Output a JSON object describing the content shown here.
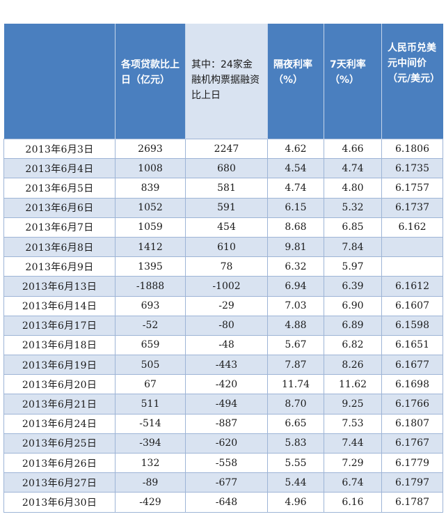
{
  "headers": [
    "",
    "各项贷款比上日（亿元）",
    "其中：24家金融机构票据融资比上日",
    "隔夜利率（%）",
    "7天利率（%）",
    "人民币兑美元中间价（元/美元）"
  ],
  "rows": [
    {
      "date": "2013年6月3日",
      "loans": "2693",
      "bills": "2247",
      "overnight": "4.62",
      "seven_day": "4.66",
      "usd": "6.1806"
    },
    {
      "date": "2013年6月4日",
      "loans": "1008",
      "bills": "680",
      "overnight": "4.54",
      "seven_day": "4.74",
      "usd": "6.1735"
    },
    {
      "date": "2013年6月5日",
      "loans": "839",
      "bills": "581",
      "overnight": "4.74",
      "seven_day": "4.80",
      "usd": "6.1757"
    },
    {
      "date": "2013年6月6日",
      "loans": "1052",
      "bills": "591",
      "overnight": "6.15",
      "seven_day": "5.32",
      "usd": "6.1737"
    },
    {
      "date": "2013年6月7日",
      "loans": "1059",
      "bills": "454",
      "overnight": "8.68",
      "seven_day": "6.85",
      "usd": "6.162"
    },
    {
      "date": "2013年6月8日",
      "loans": "1412",
      "bills": "610",
      "overnight": "9.81",
      "seven_day": "7.84",
      "usd": ""
    },
    {
      "date": "2013年6月9日",
      "loans": "1395",
      "bills": "78",
      "overnight": "6.32",
      "seven_day": "5.97",
      "usd": ""
    },
    {
      "date": "2013年6月13日",
      "loans": "-1888",
      "bills": "-1002",
      "overnight": "6.94",
      "seven_day": "6.39",
      "usd": "6.1612"
    },
    {
      "date": "2013年6月14日",
      "loans": "693",
      "bills": "-29",
      "overnight": "7.03",
      "seven_day": "6.90",
      "usd": "6.1607"
    },
    {
      "date": "2013年6月17日",
      "loans": "-52",
      "bills": "-80",
      "overnight": "4.88",
      "seven_day": "6.89",
      "usd": "6.1598"
    },
    {
      "date": "2013年6月18日",
      "loans": "659",
      "bills": "-48",
      "overnight": "5.67",
      "seven_day": "6.82",
      "usd": "6.1651"
    },
    {
      "date": "2013年6月19日",
      "loans": "505",
      "bills": "-443",
      "overnight": "7.87",
      "seven_day": "8.26",
      "usd": "6.1677"
    },
    {
      "date": "2013年6月20日",
      "loans": "67",
      "bills": "-420",
      "overnight": "11.74",
      "seven_day": "11.62",
      "usd": "6.1698"
    },
    {
      "date": "2013年6月21日",
      "loans": "511",
      "bills": "-494",
      "overnight": "8.70",
      "seven_day": "9.25",
      "usd": "6.1766"
    },
    {
      "date": "2013年6月24日",
      "loans": "-514",
      "bills": "-887",
      "overnight": "6.65",
      "seven_day": "7.53",
      "usd": "6.1807"
    },
    {
      "date": "2013年6月25日",
      "loans": "-394",
      "bills": "-620",
      "overnight": "5.83",
      "seven_day": "7.44",
      "usd": "6.1767"
    },
    {
      "date": "2013年6月26日",
      "loans": "132",
      "bills": "-558",
      "overnight": "5.55",
      "seven_day": "7.29",
      "usd": "6.1779"
    },
    {
      "date": "2013年6月27日",
      "loans": "-89",
      "bills": "-677",
      "overnight": "5.44",
      "seven_day": "6.74",
      "usd": "6.1797"
    },
    {
      "date": "2013年6月30日",
      "loans": "-429",
      "bills": "-648",
      "overnight": "4.96",
      "seven_day": "6.16",
      "usd": "6.1787"
    }
  ]
}
